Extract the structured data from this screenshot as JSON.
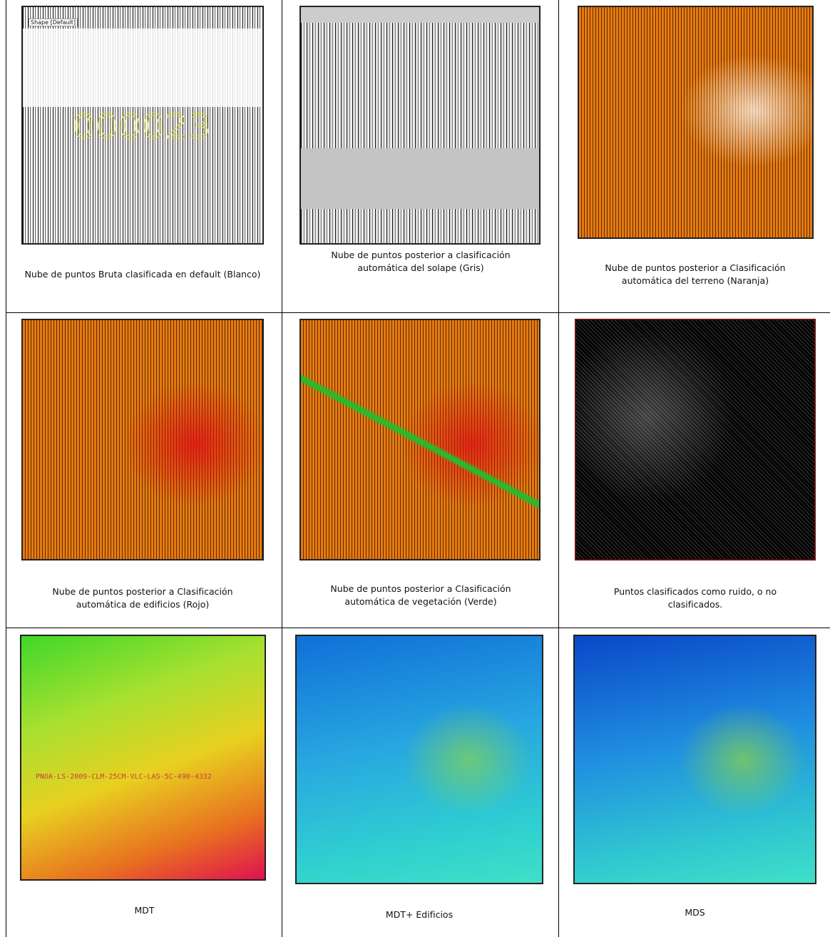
{
  "table": {
    "rows": [
      [
        {
          "caption": "Nube de puntos Bruta clasificada en default (Blanco)",
          "overlay": [
            "Shape [Default]",
            "000023"
          ]
        },
        {
          "caption": "Nube de puntos posterior a clasificación automática  del solape (Gris)"
        },
        {
          "caption": "Nube de puntos posterior a Clasificación automática del terreno (Naranja)"
        }
      ],
      [
        {
          "caption": "Nube de puntos posterior a Clasificación automática de edificios (Rojo)"
        },
        {
          "caption": "Nube de puntos posterior a Clasificación automática de vegetación (Verde)"
        },
        {
          "caption": "Puntos clasificados como ruido, o  no clasificados."
        }
      ],
      [
        {
          "caption": "MDT",
          "overlay": [
            "PNOA-LS-2009-CLM-25CM-VLC-LAS-5C-490-4332"
          ]
        },
        {
          "caption": "MDT+ Edificios"
        },
        {
          "caption": "MDS"
        }
      ]
    ]
  }
}
